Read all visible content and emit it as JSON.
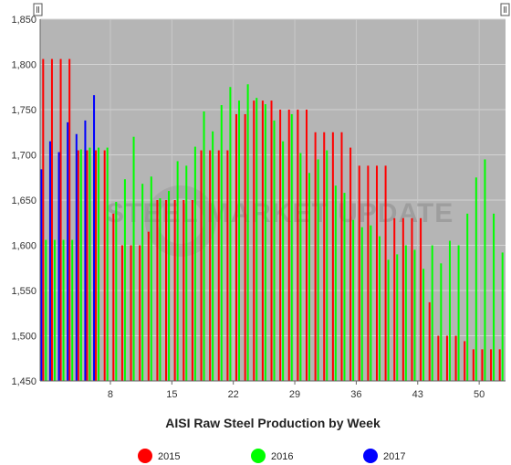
{
  "chart_data": {
    "type": "bar",
    "title": "",
    "xlabel": "AISI Raw Steel Production by Week",
    "ylabel": "",
    "ylim": [
      1450,
      1850
    ],
    "xlim": [
      0,
      53
    ],
    "yticks": [
      1450,
      1500,
      1550,
      1600,
      1650,
      1700,
      1750,
      1800,
      1850
    ],
    "xticks": [
      8,
      15,
      22,
      29,
      36,
      43,
      50
    ],
    "grid": true,
    "legend_position": "bottom",
    "watermark": "STEEL MARKET UPDATE",
    "series": [
      {
        "name": "2015",
        "color": "#ff0000",
        "weeks": [
          1,
          2,
          3,
          4,
          5,
          6,
          7,
          8,
          9,
          10,
          11,
          12,
          13,
          14,
          15,
          16,
          17,
          18,
          19,
          20,
          21,
          22,
          23,
          24,
          25,
          26,
          27,
          28,
          29,
          30,
          31,
          32,
          33,
          34,
          35,
          36,
          37,
          38,
          39,
          40,
          41,
          42,
          43,
          44,
          45,
          46,
          47,
          48,
          49,
          50,
          51,
          52,
          53
        ],
        "values": [
          1806,
          1806,
          1806,
          1806,
          1705,
          1705,
          1705,
          1705,
          1635,
          1600,
          1600,
          1600,
          1615,
          1650,
          1650,
          1650,
          1650,
          1650,
          1705,
          1705,
          1705,
          1705,
          1745,
          1745,
          1760,
          1760,
          1760,
          1750,
          1750,
          1750,
          1750,
          1725,
          1725,
          1725,
          1725,
          1708,
          1688,
          1688,
          1688,
          1688,
          1630,
          1630,
          1630,
          1630,
          1537,
          1500,
          1500,
          1500,
          1494,
          1485,
          1485,
          1485,
          1485
        ]
      },
      {
        "name": "2016",
        "color": "#00ff00",
        "weeks": [
          1,
          2,
          3,
          4,
          5,
          6,
          7,
          8,
          9,
          10,
          11,
          12,
          13,
          14,
          15,
          16,
          17,
          18,
          19,
          20,
          21,
          22,
          23,
          24,
          25,
          26,
          27,
          28,
          29,
          30,
          31,
          32,
          33,
          34,
          35,
          36,
          37,
          38,
          39,
          40,
          41,
          42,
          43,
          44,
          45,
          46,
          47,
          48,
          49,
          50,
          51,
          52,
          53
        ],
        "values": [
          1606,
          1606,
          1606,
          1606,
          1706,
          1708,
          1708,
          1708,
          1648,
          1673,
          1720,
          1668,
          1676,
          1652,
          1660,
          1693,
          1688,
          1709,
          1748,
          1726,
          1755,
          1775,
          1760,
          1778,
          1763,
          1756,
          1738,
          1715,
          1745,
          1702,
          1680,
          1695,
          1705,
          1666,
          1658,
          1628,
          1620,
          1622,
          1610,
          1584,
          1590,
          1600,
          1595,
          1574,
          1600,
          1580,
          1605,
          1600,
          1635,
          1675,
          1695,
          1635,
          1592
        ]
      },
      {
        "name": "2017",
        "color": "#0000ff",
        "weeks": [
          1,
          2,
          3,
          4,
          5,
          6,
          7
        ],
        "values": [
          1684,
          1715,
          1703,
          1736,
          1723,
          1738,
          1766
        ]
      }
    ]
  }
}
